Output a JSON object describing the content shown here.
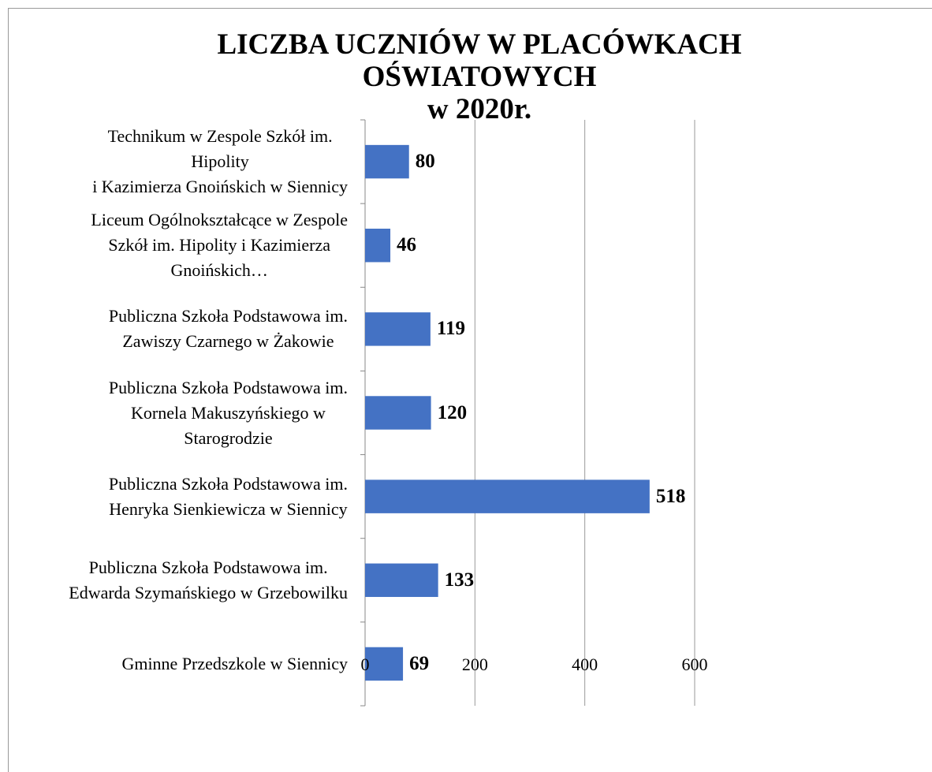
{
  "chart_data": {
    "type": "bar",
    "orientation": "horizontal",
    "title": "LICZBA UCZNIÓW W PLACÓWKACH\nOŚWIATOWYCH\nw 2020r.",
    "categories": [
      "Technikum w Zespole Szkół im.\nHipolity\ni Kazimierza Gnoińskich w Siennicy",
      "Liceum Ogólnokształcące w Zespole\nSzkół im. Hipolity i Kazimierza\nGnoińskich…",
      "Publiczna Szkoła Podstawowa im.\nZawiszy Czarnego w Żakowie",
      "Publiczna Szkoła Podstawowa im.\nKornela Makuszyńskiego w\nStarogrodzie",
      "Publiczna Szkoła Podstawowa im.\nHenryka Sienkiewicza w Siennicy",
      "Publiczna Szkoła Podstawowa im.\nEdwarda Szymańskiego w Grzebowilku",
      "Gminne Przedszkole w Siennicy"
    ],
    "values": [
      80,
      46,
      119,
      120,
      518,
      133,
      69
    ],
    "color": "#4472c4",
    "xlim": [
      0,
      600
    ],
    "xticks": [
      0,
      200,
      400,
      600
    ],
    "grid": true
  }
}
